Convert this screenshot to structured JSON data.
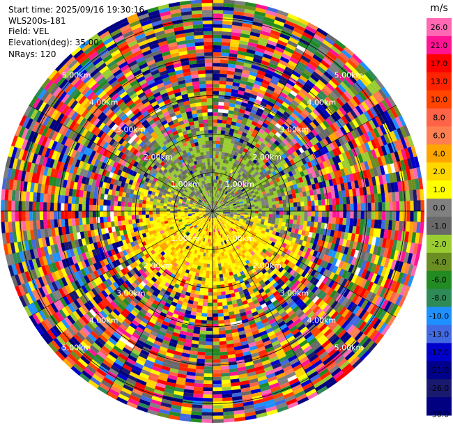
{
  "header": {
    "start_time": "Start time: 2025/09/16 19:30:16",
    "instrument": "WLS200s-181",
    "field": "Field: VEL",
    "elevation": "Elevation(deg): 35.00",
    "nrays": "NRays: 120"
  },
  "chart_data": {
    "type": "heatmap",
    "projection": "polar",
    "field": "VEL",
    "units": "m/s",
    "n_rays": 120,
    "elevation_deg": 35.0,
    "range_ring_labels": [
      "1.00km",
      "2.00km",
      "3.00km",
      "4.00km",
      "5.00km"
    ],
    "colorbar": {
      "label": "m/s",
      "ticks": [
        "26.0",
        "21.0",
        "17.0",
        "13.0",
        "10.0",
        "8.0",
        "6.0",
        "4.0",
        "2.0",
        "1.0",
        "0.0",
        "-1.0",
        "-2.0",
        "-4.0",
        "-6.0",
        "-8.0",
        "-10.0",
        "-13.0",
        "-17.0",
        "-21.0",
        "-26.0",
        "-30.0"
      ],
      "colors": [
        "#ff69b4",
        "#ff1493",
        "#ff0000",
        "#ff2400",
        "#ff4500",
        "#ff6347",
        "#ff7f50",
        "#ffa500",
        "#ffd700",
        "#ffff00",
        "#808080",
        "#696969",
        "#9acd32",
        "#6b8e23",
        "#228b22",
        "#2e8b57",
        "#1e90ff",
        "#4169e1",
        "#0000cd",
        "#00008b",
        "#191970",
        "#000080"
      ]
    }
  }
}
